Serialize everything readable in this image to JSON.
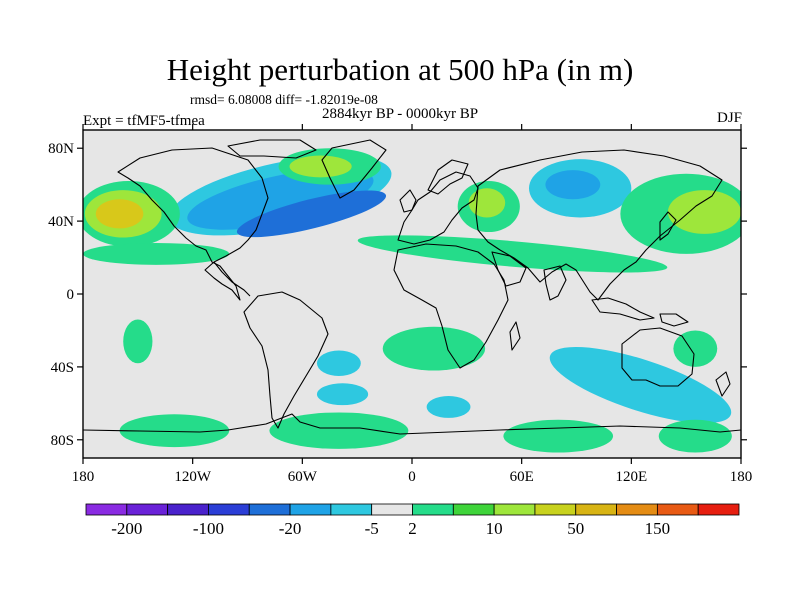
{
  "title": "Height perturbation at 500 hPa (in m)",
  "stats_text": "rmsd= 6.08008 diff= -1.82019e-08",
  "period_text": "2884kyr BP - 0000kyr BP",
  "experiment_text": "Expt = tfMF5-tfmea",
  "season_text": "DJF",
  "map": {
    "projection": "cylindrical equidistant",
    "lon_range": [
      -180,
      180
    ],
    "lat_range": [
      -90,
      90
    ],
    "lon_ticks": [
      {
        "value": -180,
        "label": "180"
      },
      {
        "value": -120,
        "label": "120W"
      },
      {
        "value": -60,
        "label": "60W"
      },
      {
        "value": 0,
        "label": "0"
      },
      {
        "value": 60,
        "label": "60E"
      },
      {
        "value": 120,
        "label": "120E"
      },
      {
        "value": 180,
        "label": "180"
      }
    ],
    "lat_ticks": [
      {
        "value": 80,
        "label": "80N"
      },
      {
        "value": 40,
        "label": "40N"
      },
      {
        "value": 0,
        "label": "0"
      },
      {
        "value": -40,
        "label": "40S"
      },
      {
        "value": -80,
        "label": "80S"
      }
    ],
    "background_color": "#e6e6e6",
    "anomaly_regions": [
      {
        "name": "n-atlantic-low-outer",
        "lon": -72,
        "lat": 54,
        "rlon": 62,
        "rlat": 18,
        "rot": -12,
        "color": "#2ec8e0"
      },
      {
        "name": "n-atlantic-low-mid",
        "lon": -72,
        "lat": 52,
        "rlon": 52,
        "rlat": 13,
        "rot": -12,
        "color": "#1fa3e6"
      },
      {
        "name": "n-atlantic-low-inner",
        "lon": -55,
        "lat": 44,
        "rlon": 42,
        "rlat": 8,
        "rot": -14,
        "color": "#1e6fd8"
      },
      {
        "name": "n-pacific-high-outer",
        "lon": -155,
        "lat": 44,
        "rlon": 28,
        "rlat": 18,
        "rot": 0,
        "color": "#25dc8a"
      },
      {
        "name": "n-pacific-high-mid",
        "lon": -158,
        "lat": 44,
        "rlon": 21,
        "rlat": 13,
        "rot": 0,
        "color": "#9ee63b"
      },
      {
        "name": "n-pacific-high-inner",
        "lon": -160,
        "lat": 44,
        "rlon": 13,
        "rlat": 8,
        "rot": 0,
        "color": "#d8c81a"
      },
      {
        "name": "greenland-high-outer",
        "lon": -45,
        "lat": 70,
        "rlon": 28,
        "rlat": 10,
        "rot": 0,
        "color": "#25dc8a"
      },
      {
        "name": "greenland-high-inner",
        "lon": -50,
        "lat": 70,
        "rlon": 17,
        "rlat": 6,
        "rot": 0,
        "color": "#9ee63b"
      },
      {
        "name": "europe-high-outer",
        "lon": 42,
        "lat": 48,
        "rlon": 17,
        "rlat": 14,
        "rot": 0,
        "color": "#25dc8a"
      },
      {
        "name": "europe-high-inner",
        "lon": 41,
        "lat": 50,
        "rlon": 10,
        "rlat": 8,
        "rot": 0,
        "color": "#9ee63b"
      },
      {
        "name": "siberia-low-outer",
        "lon": 92,
        "lat": 58,
        "rlon": 28,
        "rlat": 16,
        "rot": 0,
        "color": "#2ec8e0"
      },
      {
        "name": "siberia-low-inner",
        "lon": 88,
        "lat": 60,
        "rlon": 15,
        "rlat": 8,
        "rot": 0,
        "color": "#1fa3e6"
      },
      {
        "name": "east-asia-high-outer",
        "lon": 150,
        "lat": 44,
        "rlon": 36,
        "rlat": 22,
        "rot": 0,
        "color": "#25dc8a"
      },
      {
        "name": "east-asia-high-inner",
        "lon": 160,
        "lat": 45,
        "rlon": 20,
        "rlat": 12,
        "rot": 0,
        "color": "#9ee63b"
      },
      {
        "name": "atlantic-asia-band",
        "lon": 55,
        "lat": 22,
        "rlon": 85,
        "rlat": 7,
        "rot": 5,
        "color": "#25dc8a"
      },
      {
        "name": "tropical-pacific-band",
        "lon": -140,
        "lat": 22,
        "rlon": 40,
        "rlat": 6,
        "rot": 0,
        "color": "#25dc8a"
      },
      {
        "name": "s-pacific-high",
        "lon": -150,
        "lat": -26,
        "rlon": 8,
        "rlat": 12,
        "rot": 0,
        "color": "#25dc8a"
      },
      {
        "name": "s-atlantic-high",
        "lon": 12,
        "lat": -30,
        "rlon": 28,
        "rlat": 12,
        "rot": 0,
        "color": "#25dc8a"
      },
      {
        "name": "s-america-low",
        "lon": -40,
        "lat": -38,
        "rlon": 12,
        "rlat": 7,
        "rot": 0,
        "color": "#2ec8e0"
      },
      {
        "name": "s-atlantic-low",
        "lon": -38,
        "lat": -55,
        "rlon": 14,
        "rlat": 6,
        "rot": 0,
        "color": "#2ec8e0"
      },
      {
        "name": "indian-ocean-low",
        "lon": 125,
        "lat": -50,
        "rlon": 52,
        "rlat": 14,
        "rot": 18,
        "color": "#2ec8e0"
      },
      {
        "name": "sw-pacific-high",
        "lon": 155,
        "lat": -30,
        "rlon": 12,
        "rlat": 10,
        "rot": 0,
        "color": "#25dc8a"
      },
      {
        "name": "antarctic-high-west",
        "lon": -130,
        "lat": -75,
        "rlon": 30,
        "rlat": 9,
        "rot": 0,
        "color": "#25dc8a"
      },
      {
        "name": "antarctic-high-central",
        "lon": -40,
        "lat": -75,
        "rlon": 38,
        "rlat": 10,
        "rot": 0,
        "color": "#25dc8a"
      },
      {
        "name": "antarctic-high-east",
        "lon": 80,
        "lat": -78,
        "rlon": 30,
        "rlat": 9,
        "rot": 0,
        "color": "#25dc8a"
      },
      {
        "name": "antarctic-high-far-east",
        "lon": 155,
        "lat": -78,
        "rlon": 20,
        "rlat": 9,
        "rot": 0,
        "color": "#25dc8a"
      },
      {
        "name": "antarctic-low",
        "lon": 20,
        "lat": -62,
        "rlon": 12,
        "rlat": 6,
        "rot": 0,
        "color": "#2ec8e0"
      }
    ]
  },
  "colorbar": {
    "colors": [
      "#8a2be2",
      "#6a22d8",
      "#4a22cc",
      "#2b3ed6",
      "#1e6fd8",
      "#1fa3e6",
      "#2ec8e0",
      "#e6e6e6",
      "#25dc8a",
      "#3fd43a",
      "#9ee63b",
      "#c8d21e",
      "#d8b414",
      "#e48c14",
      "#e85a14",
      "#e61e10"
    ],
    "label_positions": [
      1,
      3,
      5,
      7,
      8,
      10,
      12,
      14
    ],
    "labels": [
      "-200",
      "-100",
      "-20",
      "-5",
      "2",
      "10",
      "50",
      "150"
    ]
  }
}
